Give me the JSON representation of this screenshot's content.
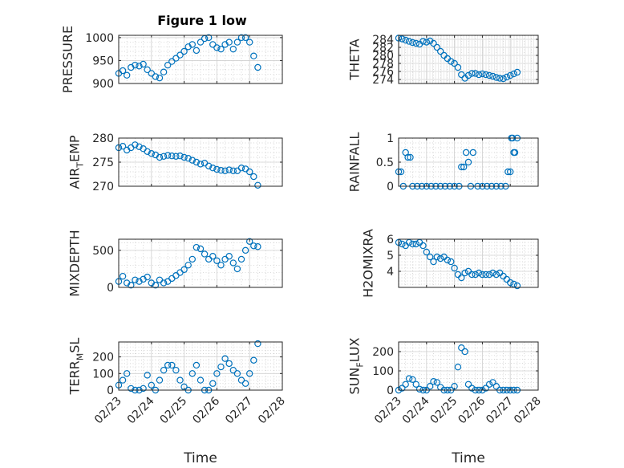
{
  "figure_title": "Figure 1 low",
  "marker_color": "#0072BD",
  "chart_data": [
    {
      "type": "scatter",
      "title": "Figure 1 low",
      "ylabel": "PRESSURE",
      "ylim": [
        900,
        1005
      ],
      "yticks": [
        900,
        950,
        1000
      ],
      "ytick_labels": [
        "900",
        "950",
        "1000"
      ],
      "xlim": [
        "2020-02-23",
        "2020-02-28"
      ],
      "xtick_labels": [
        "02/23",
        "02/24",
        "02/25",
        "02/26",
        "02/27",
        "02/28"
      ],
      "x": [
        "02/23 00:00",
        "02/23 03:00",
        "02/23 06:00",
        "02/23 09:00",
        "02/23 12:00",
        "02/23 15:00",
        "02/23 18:00",
        "02/23 21:00",
        "02/24 00:00",
        "02/24 03:00",
        "02/24 06:00",
        "02/24 09:00",
        "02/24 12:00",
        "02/24 15:00",
        "02/24 18:00",
        "02/24 21:00",
        "02/25 00:00",
        "02/25 03:00",
        "02/25 06:00",
        "02/25 09:00",
        "02/25 12:00",
        "02/25 15:00",
        "02/25 18:00",
        "02/25 21:00",
        "02/26 00:00",
        "02/26 03:00",
        "02/26 06:00",
        "02/26 09:00",
        "02/26 12:00",
        "02/26 15:00",
        "02/26 18:00",
        "02/26 21:00",
        "02/27 00:00",
        "02/27 03:00",
        "02/27 06:00"
      ],
      "y": [
        922,
        928,
        918,
        935,
        940,
        938,
        942,
        930,
        922,
        915,
        912,
        925,
        940,
        948,
        955,
        962,
        970,
        980,
        985,
        972,
        990,
        998,
        1000,
        985,
        978,
        975,
        985,
        990,
        975,
        990,
        1000,
        1000,
        990,
        960,
        935
      ],
      "xlabel": ""
    },
    {
      "type": "scatter",
      "ylabel": "THETA",
      "ylim": [
        273,
        285
      ],
      "yticks": [
        274,
        276,
        278,
        280,
        282,
        284
      ],
      "ytick_labels": [
        "274",
        "276",
        "278",
        "280",
        "282",
        "284"
      ],
      "xlim": [
        "2020-02-23",
        "2020-02-28"
      ],
      "xtick_labels": [
        "02/23",
        "02/24",
        "02/25",
        "02/26",
        "02/27",
        "02/28"
      ],
      "x": [
        "02/23 00:00",
        "02/23 03:00",
        "02/23 06:00",
        "02/23 09:00",
        "02/23 12:00",
        "02/23 15:00",
        "02/23 18:00",
        "02/23 21:00",
        "02/24 00:00",
        "02/24 03:00",
        "02/24 06:00",
        "02/24 09:00",
        "02/24 12:00",
        "02/24 15:00",
        "02/24 18:00",
        "02/24 21:00",
        "02/25 00:00",
        "02/25 03:00",
        "02/25 06:00",
        "02/25 09:00",
        "02/25 12:00",
        "02/25 15:00",
        "02/25 18:00",
        "02/25 21:00",
        "02/26 00:00",
        "02/26 03:00",
        "02/26 06:00",
        "02/26 09:00",
        "02/26 12:00",
        "02/26 15:00",
        "02/26 18:00",
        "02/26 21:00",
        "02/27 00:00",
        "02/27 03:00",
        "02/27 06:00"
      ],
      "y": [
        284.3,
        284.1,
        283.8,
        283.5,
        283.2,
        283.0,
        282.8,
        283.5,
        283.3,
        283.6,
        283.0,
        282.0,
        281.0,
        280.0,
        279.2,
        278.5,
        278.0,
        277.0,
        275.2,
        274.3,
        275.0,
        275.5,
        275.5,
        275.2,
        275.4,
        275.2,
        275.0,
        274.8,
        274.5,
        274.3,
        274.2,
        274.6,
        275.0,
        275.4,
        275.8
      ],
      "xlabel": ""
    },
    {
      "type": "scatter",
      "ylabel": "AIR_TEMP",
      "ylim": [
        270,
        280
      ],
      "yticks": [
        270,
        275,
        280
      ],
      "ytick_labels": [
        "270",
        "275",
        "280"
      ],
      "xlim": [
        "2020-02-23",
        "2020-02-28"
      ],
      "xtick_labels": [
        "02/23",
        "02/24",
        "02/25",
        "02/26",
        "02/27",
        "02/28"
      ],
      "x": [
        "02/23 00:00",
        "02/23 03:00",
        "02/23 06:00",
        "02/23 09:00",
        "02/23 12:00",
        "02/23 15:00",
        "02/23 18:00",
        "02/23 21:00",
        "02/24 00:00",
        "02/24 03:00",
        "02/24 06:00",
        "02/24 09:00",
        "02/24 12:00",
        "02/24 15:00",
        "02/24 18:00",
        "02/24 21:00",
        "02/25 00:00",
        "02/25 03:00",
        "02/25 06:00",
        "02/25 09:00",
        "02/25 12:00",
        "02/25 15:00",
        "02/25 18:00",
        "02/25 21:00",
        "02/26 00:00",
        "02/26 03:00",
        "02/26 06:00",
        "02/26 09:00",
        "02/26 12:00",
        "02/26 15:00",
        "02/26 18:00",
        "02/26 21:00",
        "02/27 00:00",
        "02/27 03:00",
        "02/27 06:00"
      ],
      "y": [
        278.0,
        278.3,
        277.5,
        278.0,
        278.6,
        278.2,
        277.8,
        277.2,
        276.8,
        276.5,
        276.0,
        276.2,
        276.4,
        276.3,
        276.2,
        276.3,
        276.0,
        275.8,
        275.4,
        275.0,
        274.6,
        274.8,
        274.2,
        273.8,
        273.5,
        273.3,
        273.2,
        273.4,
        273.2,
        273.2,
        273.8,
        273.6,
        273.0,
        272.0,
        270.2
      ],
      "xlabel": ""
    },
    {
      "type": "scatter",
      "ylabel": "RAINFALL",
      "ylim": [
        0,
        1
      ],
      "yticks": [
        0,
        0.5,
        1
      ],
      "ytick_labels": [
        "0",
        "0.5",
        "1"
      ],
      "xlim": [
        "2020-02-23",
        "2020-02-28"
      ],
      "xtick_labels": [
        "02/23",
        "02/24",
        "02/25",
        "02/26",
        "02/27",
        "02/28"
      ],
      "x": [
        "02/23 00:00",
        "02/23 02:00",
        "02/23 04:00",
        "02/23 06:00",
        "02/23 08:00",
        "02/23 10:00",
        "02/23 12:00",
        "02/23 16:00",
        "02/23 20:00",
        "02/24 00:00",
        "02/24 04:00",
        "02/24 08:00",
        "02/24 12:00",
        "02/24 16:00",
        "02/24 20:00",
        "02/25 00:00",
        "02/25 04:00",
        "02/25 06:00",
        "02/25 08:00",
        "02/25 10:00",
        "02/25 12:00",
        "02/25 14:00",
        "02/25 16:00",
        "02/25 20:00",
        "02/26 00:00",
        "02/26 04:00",
        "02/26 08:00",
        "02/26 12:00",
        "02/26 16:00",
        "02/26 20:00",
        "02/26 22:00",
        "02/27 00:00",
        "02/27 01:00",
        "02/27 02:00",
        "02/27 03:00",
        "02/27 04:00",
        "02/27 06:00"
      ],
      "y": [
        0.3,
        0.3,
        0,
        0.7,
        0.6,
        0.6,
        0,
        0,
        0,
        0,
        0,
        0,
        0,
        0,
        0,
        0,
        0,
        0.4,
        0.4,
        0.7,
        0.5,
        0,
        0.7,
        0,
        0,
        0,
        0,
        0,
        0,
        0,
        0.3,
        0.3,
        1.0,
        1.0,
        0.7,
        0.7,
        1.0
      ],
      "xlabel": ""
    },
    {
      "type": "scatter",
      "ylabel": "MIXDEPTH",
      "ylim": [
        0,
        650
      ],
      "yticks": [
        0,
        500
      ],
      "ytick_labels": [
        "0",
        "500"
      ],
      "xlim": [
        "2020-02-23",
        "2020-02-28"
      ],
      "xtick_labels": [
        "02/23",
        "02/24",
        "02/25",
        "02/26",
        "02/27",
        "02/28"
      ],
      "x": [
        "02/23 00:00",
        "02/23 03:00",
        "02/23 06:00",
        "02/23 09:00",
        "02/23 12:00",
        "02/23 15:00",
        "02/23 18:00",
        "02/23 21:00",
        "02/24 00:00",
        "02/24 03:00",
        "02/24 06:00",
        "02/24 09:00",
        "02/24 12:00",
        "02/24 15:00",
        "02/24 18:00",
        "02/24 21:00",
        "02/25 00:00",
        "02/25 03:00",
        "02/25 06:00",
        "02/25 09:00",
        "02/25 12:00",
        "02/25 15:00",
        "02/25 18:00",
        "02/25 21:00",
        "02/26 00:00",
        "02/26 03:00",
        "02/26 06:00",
        "02/26 09:00",
        "02/26 12:00",
        "02/26 15:00",
        "02/26 18:00",
        "02/26 21:00",
        "02/27 00:00",
        "02/27 03:00",
        "02/27 06:00"
      ],
      "y": [
        80,
        150,
        60,
        30,
        100,
        80,
        110,
        140,
        60,
        30,
        100,
        60,
        80,
        120,
        160,
        200,
        240,
        300,
        380,
        540,
        520,
        450,
        380,
        420,
        360,
        300,
        380,
        420,
        330,
        250,
        380,
        500,
        620,
        560,
        550
      ],
      "xlabel": ""
    },
    {
      "type": "scatter",
      "ylabel": "H2OMIXRA",
      "ylim": [
        3,
        6
      ],
      "yticks": [
        4,
        5,
        6
      ],
      "ytick_labels": [
        "4",
        "5",
        "6"
      ],
      "xlim": [
        "2020-02-23",
        "2020-02-28"
      ],
      "xtick_labels": [
        "02/23",
        "02/24",
        "02/25",
        "02/26",
        "02/27",
        "02/28"
      ],
      "x": [
        "02/23 00:00",
        "02/23 03:00",
        "02/23 06:00",
        "02/23 09:00",
        "02/23 12:00",
        "02/23 15:00",
        "02/23 18:00",
        "02/23 21:00",
        "02/24 00:00",
        "02/24 03:00",
        "02/24 06:00",
        "02/24 09:00",
        "02/24 12:00",
        "02/24 15:00",
        "02/24 18:00",
        "02/24 21:00",
        "02/25 00:00",
        "02/25 03:00",
        "02/25 06:00",
        "02/25 09:00",
        "02/25 12:00",
        "02/25 15:00",
        "02/25 18:00",
        "02/25 21:00",
        "02/26 00:00",
        "02/26 03:00",
        "02/26 06:00",
        "02/26 09:00",
        "02/26 12:00",
        "02/26 15:00",
        "02/26 18:00",
        "02/26 21:00",
        "02/27 00:00",
        "02/27 03:00",
        "02/27 06:00"
      ],
      "y": [
        5.8,
        5.7,
        5.6,
        5.8,
        5.7,
        5.7,
        5.8,
        5.6,
        5.2,
        4.9,
        4.6,
        4.9,
        4.8,
        4.9,
        4.7,
        4.6,
        4.2,
        3.8,
        3.6,
        3.9,
        4.0,
        3.8,
        3.8,
        3.9,
        3.8,
        3.8,
        3.8,
        3.9,
        3.8,
        3.9,
        3.7,
        3.5,
        3.3,
        3.2,
        3.1
      ],
      "xlabel": ""
    },
    {
      "type": "scatter",
      "ylabel": "TERR_MSL",
      "ylim": [
        0,
        290
      ],
      "yticks": [
        0,
        100,
        200
      ],
      "ytick_labels": [
        "0",
        "100",
        "200"
      ],
      "xlim": [
        "2020-02-23",
        "2020-02-28"
      ],
      "xtick_labels": [
        "02/23",
        "02/24",
        "02/25",
        "02/26",
        "02/27",
        "02/28"
      ],
      "x": [
        "02/23 00:00",
        "02/23 03:00",
        "02/23 06:00",
        "02/23 09:00",
        "02/23 12:00",
        "02/23 15:00",
        "02/23 18:00",
        "02/23 21:00",
        "02/24 00:00",
        "02/24 03:00",
        "02/24 06:00",
        "02/24 09:00",
        "02/24 12:00",
        "02/24 15:00",
        "02/24 18:00",
        "02/24 21:00",
        "02/25 00:00",
        "02/25 03:00",
        "02/25 06:00",
        "02/25 09:00",
        "02/25 12:00",
        "02/25 15:00",
        "02/25 18:00",
        "02/25 21:00",
        "02/26 00:00",
        "02/26 03:00",
        "02/26 06:00",
        "02/26 09:00",
        "02/26 12:00",
        "02/26 15:00",
        "02/26 18:00",
        "02/26 21:00",
        "02/27 00:00",
        "02/27 03:00",
        "02/27 06:00"
      ],
      "y": [
        30,
        60,
        100,
        10,
        0,
        0,
        10,
        90,
        30,
        0,
        60,
        120,
        150,
        150,
        120,
        60,
        20,
        0,
        100,
        150,
        60,
        0,
        0,
        40,
        100,
        140,
        190,
        160,
        120,
        100,
        60,
        40,
        100,
        180,
        280
      ],
      "xlabel": "Time"
    },
    {
      "type": "scatter",
      "ylabel": "SUN_FLUX",
      "ylim": [
        0,
        250
      ],
      "yticks": [
        0,
        100,
        200
      ],
      "ytick_labels": [
        "0",
        "100",
        "200"
      ],
      "xlim": [
        "2020-02-23",
        "2020-02-28"
      ],
      "xtick_labels": [
        "02/23",
        "02/24",
        "02/25",
        "02/26",
        "02/27",
        "02/28"
      ],
      "x": [
        "02/23 00:00",
        "02/23 03:00",
        "02/23 06:00",
        "02/23 09:00",
        "02/23 12:00",
        "02/23 15:00",
        "02/23 18:00",
        "02/23 21:00",
        "02/24 00:00",
        "02/24 03:00",
        "02/24 06:00",
        "02/24 09:00",
        "02/24 12:00",
        "02/24 15:00",
        "02/24 18:00",
        "02/24 21:00",
        "02/25 00:00",
        "02/25 03:00",
        "02/25 06:00",
        "02/25 09:00",
        "02/25 12:00",
        "02/25 15:00",
        "02/25 18:00",
        "02/25 21:00",
        "02/26 00:00",
        "02/26 03:00",
        "02/26 06:00",
        "02/26 09:00",
        "02/26 12:00",
        "02/26 15:00",
        "02/26 18:00",
        "02/26 21:00",
        "02/27 00:00",
        "02/27 03:00",
        "02/27 06:00"
      ],
      "y": [
        0,
        10,
        30,
        60,
        55,
        30,
        5,
        0,
        0,
        20,
        45,
        40,
        15,
        0,
        0,
        0,
        20,
        120,
        220,
        200,
        30,
        10,
        0,
        0,
        0,
        10,
        30,
        40,
        20,
        0,
        0,
        0,
        0,
        0,
        0
      ],
      "xlabel": "Time"
    }
  ],
  "ylabel_parts": [
    {
      "main": "PRESSURE",
      "sub": "",
      "tail": ""
    },
    {
      "main": "THETA",
      "sub": "",
      "tail": ""
    },
    {
      "main": "AIR",
      "sub": "T",
      "tail": "EMP"
    },
    {
      "main": "RAINFALL",
      "sub": "",
      "tail": ""
    },
    {
      "main": "MIXDEPTH",
      "sub": "",
      "tail": ""
    },
    {
      "main": "H2OMIXRA",
      "sub": "",
      "tail": ""
    },
    {
      "main": "TERR",
      "sub": "M",
      "tail": "SL"
    },
    {
      "main": "SUN",
      "sub": "F",
      "tail": "LUX"
    }
  ]
}
